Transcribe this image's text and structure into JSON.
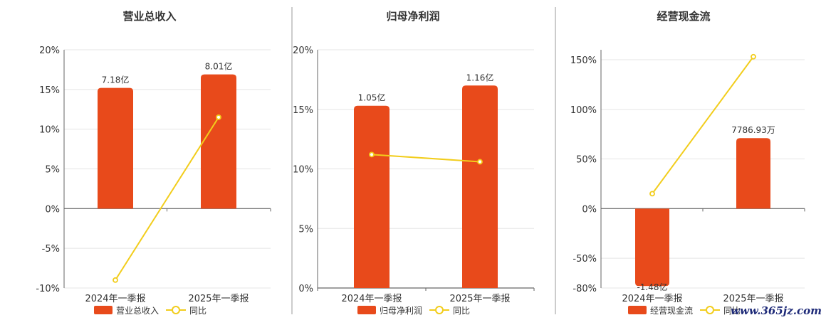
{
  "colors": {
    "bar": "#e84a1b",
    "line": "#f2cd1c",
    "grid": "#e5e5e5",
    "axis": "#666666",
    "divider": "#999999"
  },
  "watermark": "www.365jz.com",
  "chart_data": [
    {
      "type": "bar",
      "title": "营业总收入",
      "categories": [
        "2024年一季报",
        "2025年一季报"
      ],
      "series": [
        {
          "name": "营业总收入",
          "type": "bar",
          "values": [
            7.18,
            8.01
          ],
          "unit": "亿",
          "labels": [
            "7.18亿",
            "8.01亿"
          ]
        },
        {
          "name": "同比",
          "type": "line",
          "values": [
            -9.0,
            11.5
          ],
          "unit": "%"
        }
      ],
      "y_ticks": [
        "20%",
        "15%",
        "10%",
        "5%",
        "0%",
        "-5%",
        "-10%"
      ],
      "ylim": [
        -10,
        20
      ],
      "bar_values_pct": [
        15.2,
        16.9
      ],
      "grid": true,
      "legend_position": "bottom"
    },
    {
      "type": "bar",
      "title": "归母净利润",
      "categories": [
        "2024年一季报",
        "2025年一季报"
      ],
      "series": [
        {
          "name": "归母净利润",
          "type": "bar",
          "values": [
            1.05,
            1.16
          ],
          "unit": "亿",
          "labels": [
            "1.05亿",
            "1.16亿"
          ]
        },
        {
          "name": "同比",
          "type": "line",
          "values": [
            11.2,
            10.6
          ],
          "unit": "%"
        }
      ],
      "y_ticks": [
        "20%",
        "15%",
        "10%",
        "5%",
        "0%"
      ],
      "ylim": [
        0,
        20
      ],
      "bar_values_pct": [
        15.3,
        17.0
      ],
      "grid": true,
      "legend_position": "bottom"
    },
    {
      "type": "bar",
      "title": "经营现金流",
      "categories": [
        "2024年一季报",
        "2025年一季报"
      ],
      "series": [
        {
          "name": "经营现金流",
          "type": "bar",
          "values": [
            -1.48,
            0.778693
          ],
          "unit": "亿",
          "labels": [
            "-1.48亿",
            "7786.93万"
          ]
        },
        {
          "name": "同比",
          "type": "line",
          "values": [
            15,
            153
          ],
          "unit": "%"
        }
      ],
      "y_ticks": [
        "150%",
        "100%",
        "50%",
        "0%",
        "-50%",
        "-80%"
      ],
      "ylim": [
        -80,
        160
      ],
      "bar_values_pct": [
        -78,
        71
      ],
      "grid": true,
      "legend_position": "bottom"
    }
  ]
}
